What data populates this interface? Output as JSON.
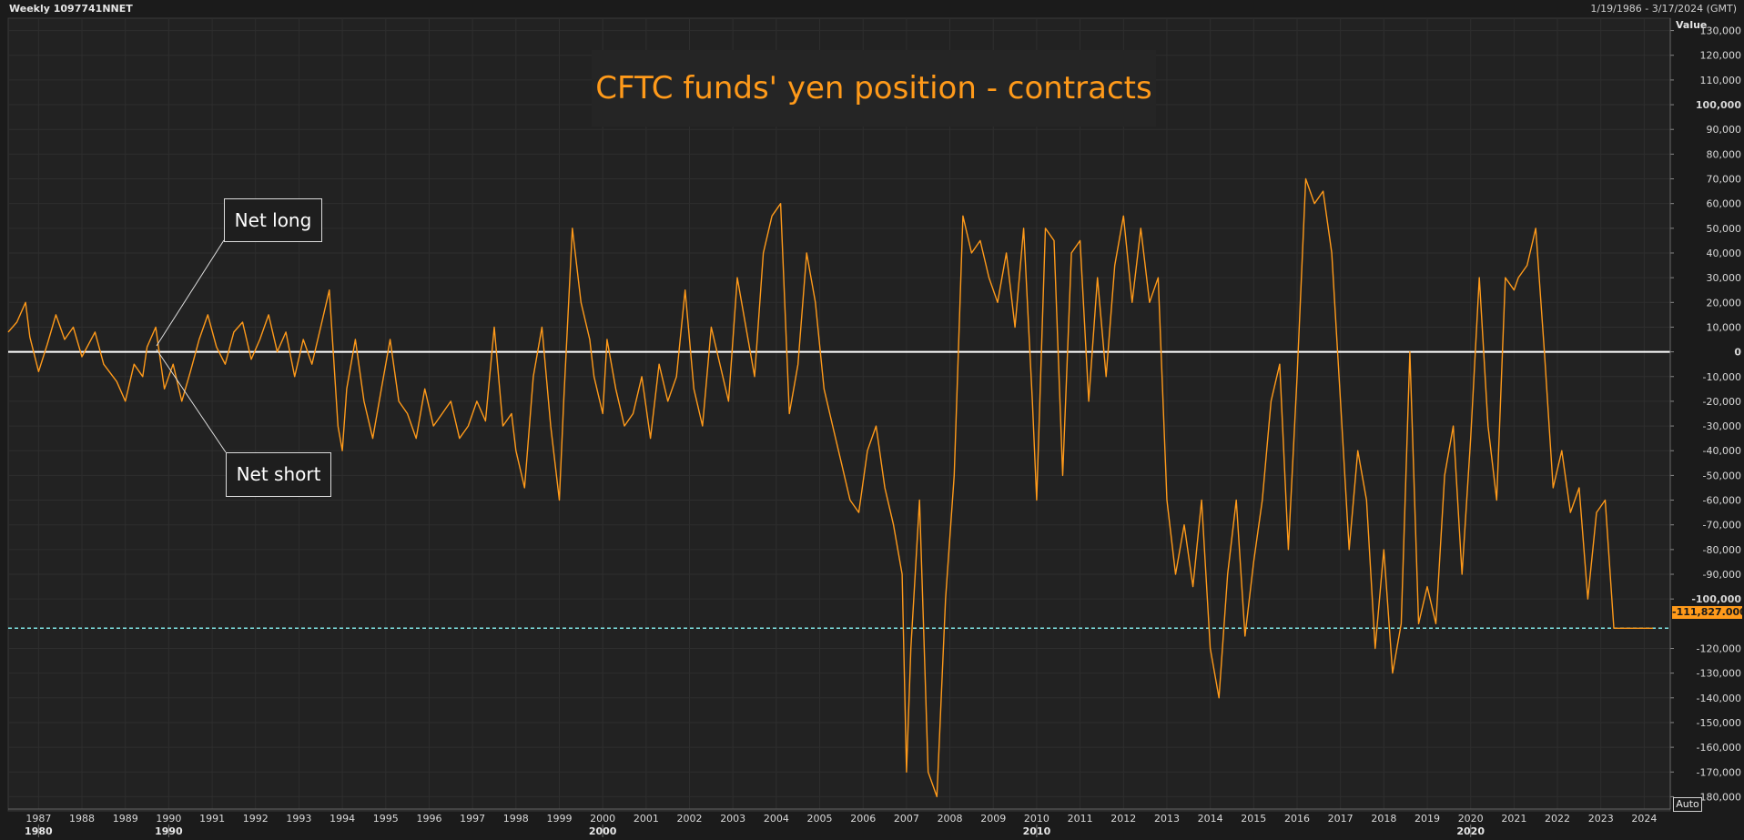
{
  "header": {
    "series_label": "Weekly 1097741NNET",
    "date_range": "1/19/1986 - 3/17/2024 (GMT)"
  },
  "controls": {
    "auto_label": "Auto"
  },
  "annotations": {
    "net_long": "Net long",
    "net_short": "Net short"
  },
  "last_value_label": "-111,827.000",
  "colors": {
    "line": "#ff9a1a",
    "zero_line": "#ffffff",
    "last_line": "#7fe5e5",
    "background": "#1b1b1b",
    "grid": "#2e2e2e"
  },
  "chart_data": {
    "type": "line",
    "title": "CFTC funds' yen position - contracts",
    "ylabel": "Value",
    "ylim": [
      -185000,
      135000
    ],
    "xlim": [
      1986.3,
      2024.6
    ],
    "y_ticks": [
      {
        "v": 130000,
        "t": "130,000"
      },
      {
        "v": 120000,
        "t": "120,000"
      },
      {
        "v": 110000,
        "t": "110,000"
      },
      {
        "v": 100000,
        "t": "100,000",
        "bold": true
      },
      {
        "v": 90000,
        "t": "90,000"
      },
      {
        "v": 80000,
        "t": "80,000"
      },
      {
        "v": 70000,
        "t": "70,000"
      },
      {
        "v": 60000,
        "t": "60,000"
      },
      {
        "v": 50000,
        "t": "50,000"
      },
      {
        "v": 40000,
        "t": "40,000"
      },
      {
        "v": 30000,
        "t": "30,000"
      },
      {
        "v": 20000,
        "t": "20,000"
      },
      {
        "v": 10000,
        "t": "10,000"
      },
      {
        "v": 0,
        "t": "0",
        "bold": true
      },
      {
        "v": -10000,
        "t": "-10,000"
      },
      {
        "v": -20000,
        "t": "-20,000"
      },
      {
        "v": -30000,
        "t": "-30,000"
      },
      {
        "v": -40000,
        "t": "-40,000"
      },
      {
        "v": -50000,
        "t": "-50,000"
      },
      {
        "v": -60000,
        "t": "-60,000"
      },
      {
        "v": -70000,
        "t": "-70,000"
      },
      {
        "v": -80000,
        "t": "-80,000"
      },
      {
        "v": -90000,
        "t": "-90,000"
      },
      {
        "v": -100000,
        "t": "-100,000",
        "bold": true
      },
      {
        "v": -120000,
        "t": "-120,000"
      },
      {
        "v": -130000,
        "t": "-130,000"
      },
      {
        "v": -140000,
        "t": "-140,000"
      },
      {
        "v": -150000,
        "t": "-150,000"
      },
      {
        "v": -160000,
        "t": "-160,000"
      },
      {
        "v": -170000,
        "t": "-170,000"
      },
      {
        "v": -180000,
        "t": "-180,000"
      }
    ],
    "x_ticks": [
      {
        "v": 1987,
        "t": "1987"
      },
      {
        "v": 1988,
        "t": "1988"
      },
      {
        "v": 1989,
        "t": "1989"
      },
      {
        "v": 1990,
        "t": "1990"
      },
      {
        "v": 1991,
        "t": "1991"
      },
      {
        "v": 1992,
        "t": "1992"
      },
      {
        "v": 1993,
        "t": "1993"
      },
      {
        "v": 1994,
        "t": "1994"
      },
      {
        "v": 1995,
        "t": "1995"
      },
      {
        "v": 1996,
        "t": "1996"
      },
      {
        "v": 1997,
        "t": "1997"
      },
      {
        "v": 1998,
        "t": "1998"
      },
      {
        "v": 1999,
        "t": "1999"
      },
      {
        "v": 2000,
        "t": "2000"
      },
      {
        "v": 2001,
        "t": "2001"
      },
      {
        "v": 2002,
        "t": "2002"
      },
      {
        "v": 2003,
        "t": "2003"
      },
      {
        "v": 2004,
        "t": "2004"
      },
      {
        "v": 2005,
        "t": "2005"
      },
      {
        "v": 2006,
        "t": "2006"
      },
      {
        "v": 2007,
        "t": "2007"
      },
      {
        "v": 2008,
        "t": "2008"
      },
      {
        "v": 2009,
        "t": "2009"
      },
      {
        "v": 2010,
        "t": "2010"
      },
      {
        "v": 2011,
        "t": "2011"
      },
      {
        "v": 2012,
        "t": "2012"
      },
      {
        "v": 2013,
        "t": "2013"
      },
      {
        "v": 2014,
        "t": "2014"
      },
      {
        "v": 2015,
        "t": "2015"
      },
      {
        "v": 2016,
        "t": "2016"
      },
      {
        "v": 2017,
        "t": "2017"
      },
      {
        "v": 2018,
        "t": "2018"
      },
      {
        "v": 2019,
        "t": "2019"
      },
      {
        "v": 2020,
        "t": "2020"
      },
      {
        "v": 2021,
        "t": "2021"
      },
      {
        "v": 2022,
        "t": "2022"
      },
      {
        "v": 2023,
        "t": "2023"
      },
      {
        "v": 2024,
        "t": "2024"
      }
    ],
    "decade_labels": [
      {
        "v": 1987,
        "t": "1980"
      },
      {
        "v": 1990,
        "t": "1990"
      },
      {
        "v": 2000,
        "t": "2000"
      },
      {
        "v": 2010,
        "t": "2010"
      },
      {
        "v": 2020,
        "t": "2020"
      }
    ],
    "reference_lines": [
      {
        "y": 0,
        "style": "solid"
      },
      {
        "y": -111827,
        "style": "dashed"
      }
    ],
    "series": [
      {
        "x": [
          1986.3,
          1986.5,
          1986.7,
          1986.8,
          1987.0,
          1987.2,
          1987.4,
          1987.6,
          1987.8,
          1988.0,
          1988.3,
          1988.5,
          1988.8,
          1989.0,
          1989.2,
          1989.4,
          1989.5,
          1989.7,
          1989.9,
          1990.1,
          1990.3,
          1990.5,
          1990.7,
          1990.9,
          1991.1,
          1991.3,
          1991.5,
          1991.7,
          1991.9,
          1992.1,
          1992.3,
          1992.5,
          1992.7,
          1992.9,
          1993.1,
          1993.3,
          1993.5,
          1993.7,
          1993.9,
          1994.0,
          1994.1,
          1994.3,
          1994.5,
          1994.7,
          1994.9,
          1995.1,
          1995.3,
          1995.5,
          1995.7,
          1995.9,
          1996.1,
          1996.3,
          1996.5,
          1996.7,
          1996.9,
          1997.1,
          1997.3,
          1997.5,
          1997.7,
          1997.9,
          1998.0,
          1998.2,
          1998.4,
          1998.6,
          1998.8,
          1999.0,
          1999.1,
          1999.3,
          1999.5,
          1999.7,
          1999.8,
          2000.0,
          2000.1,
          2000.3,
          2000.5,
          2000.7,
          2000.9,
          2001.1,
          2001.3,
          2001.5,
          2001.7,
          2001.9,
          2002.1,
          2002.3,
          2002.5,
          2002.7,
          2002.9,
          2003.1,
          2003.3,
          2003.5,
          2003.7,
          2003.9,
          2004.1,
          2004.3,
          2004.5,
          2004.7,
          2004.9,
          2005.1,
          2005.3,
          2005.5,
          2005.7,
          2005.9,
          2006.1,
          2006.3,
          2006.5,
          2006.7,
          2006.9,
          2007.0,
          2007.1,
          2007.3,
          2007.5,
          2007.7,
          2007.9,
          2008.1,
          2008.3,
          2008.5,
          2008.7,
          2008.9,
          2009.1,
          2009.3,
          2009.5,
          2009.7,
          2009.9,
          2010.0,
          2010.2,
          2010.4,
          2010.6,
          2010.8,
          2011.0,
          2011.2,
          2011.4,
          2011.6,
          2011.8,
          2012.0,
          2012.2,
          2012.4,
          2012.6,
          2012.8,
          2013.0,
          2013.2,
          2013.4,
          2013.6,
          2013.8,
          2014.0,
          2014.2,
          2014.4,
          2014.6,
          2014.8,
          2015.0,
          2015.2,
          2015.4,
          2015.6,
          2015.8,
          2016.0,
          2016.2,
          2016.4,
          2016.6,
          2016.8,
          2017.0,
          2017.2,
          2017.4,
          2017.6,
          2017.8,
          2018.0,
          2018.2,
          2018.4,
          2018.6,
          2018.8,
          2019.0,
          2019.2,
          2019.4,
          2019.6,
          2019.8,
          2020.0,
          2020.2,
          2020.4,
          2020.6,
          2020.8,
          2021.0,
          2021.1,
          2021.3,
          2021.5,
          2021.7,
          2021.9,
          2022.1,
          2022.3,
          2022.5,
          2022.7,
          2022.9,
          2023.1,
          2023.3,
          2023.5,
          2023.7,
          2023.9,
          2024.0,
          2024.2
        ],
        "values": [
          8000,
          12000,
          20000,
          6000,
          -8000,
          3000,
          15000,
          5000,
          10000,
          -2000,
          8000,
          -5000,
          -12000,
          -20000,
          -5000,
          -10000,
          2000,
          10000,
          -15000,
          -5000,
          -20000,
          -8000,
          5000,
          15000,
          2000,
          -5000,
          8000,
          12000,
          -3000,
          5000,
          15000,
          0,
          8000,
          -10000,
          5000,
          -5000,
          10000,
          25000,
          -30000,
          -40000,
          -15000,
          5000,
          -20000,
          -35000,
          -15000,
          5000,
          -20000,
          -25000,
          -35000,
          -15000,
          -30000,
          -25000,
          -20000,
          -35000,
          -30000,
          -20000,
          -28000,
          10000,
          -30000,
          -25000,
          -40000,
          -55000,
          -10000,
          10000,
          -30000,
          -60000,
          -20000,
          50000,
          20000,
          5000,
          -10000,
          -25000,
          5000,
          -15000,
          -30000,
          -25000,
          -10000,
          -35000,
          -5000,
          -20000,
          -10000,
          25000,
          -15000,
          -30000,
          10000,
          -5000,
          -20000,
          30000,
          10000,
          -10000,
          40000,
          55000,
          60000,
          -25000,
          -5000,
          40000,
          20000,
          -15000,
          -30000,
          -45000,
          -60000,
          -65000,
          -40000,
          -30000,
          -55000,
          -70000,
          -90000,
          -170000,
          -120000,
          -60000,
          -170000,
          -180000,
          -100000,
          -50000,
          55000,
          40000,
          45000,
          30000,
          20000,
          40000,
          10000,
          50000,
          -20000,
          -60000,
          50000,
          45000,
          -50000,
          40000,
          45000,
          -20000,
          30000,
          -10000,
          35000,
          55000,
          20000,
          50000,
          20000,
          30000,
          -60000,
          -90000,
          -70000,
          -95000,
          -60000,
          -120000,
          -140000,
          -90000,
          -60000,
          -115000,
          -85000,
          -60000,
          -20000,
          -5000,
          -80000,
          -10000,
          70000,
          60000,
          65000,
          40000,
          -20000,
          -80000,
          -40000,
          -60000,
          -120000,
          -80000,
          -130000,
          -110000,
          0,
          -110000,
          -95000,
          -110000,
          -50000,
          -30000,
          -90000,
          -35000,
          30000,
          -30000,
          -60000,
          30000,
          25000,
          30000,
          35000,
          50000,
          0,
          -55000,
          -40000,
          -65000,
          -55000,
          -100000,
          -65000,
          -60000,
          -111827,
          -111827,
          -111827,
          -111827,
          -111827,
          -111827
        ]
      }
    ]
  }
}
